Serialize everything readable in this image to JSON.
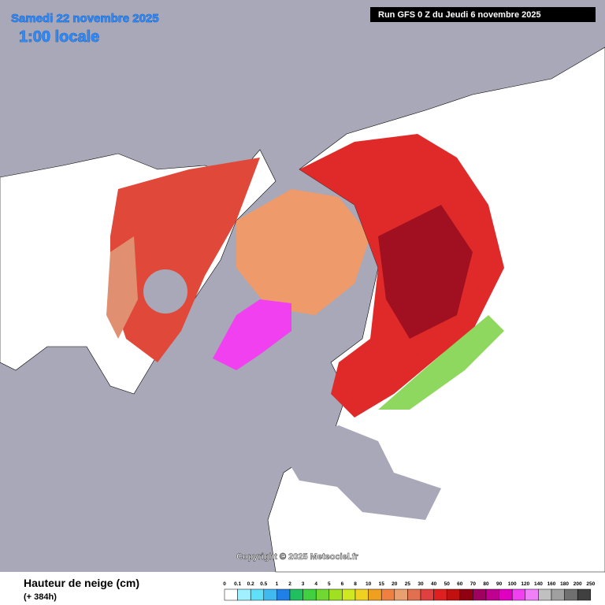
{
  "header": {
    "date": "Samedi 22 novembre 2025",
    "time": "1:00 locale",
    "run": "Run GFS 0 Z du Jeudi 6 novembre 2025"
  },
  "copyright": "Copyright © 2025 Meteociel.fr",
  "legend": {
    "title": "Hauteur de neige (cm)",
    "lead": "(+ 384h)",
    "labels": [
      "0",
      "0.1",
      "0.2",
      "0.5",
      "1",
      "2",
      "3",
      "4",
      "5",
      "6",
      "8",
      "10",
      "15",
      "20",
      "25",
      "30",
      "40",
      "50",
      "60",
      "70",
      "80",
      "90",
      "100",
      "120",
      "140",
      "160",
      "180",
      "200",
      "250"
    ],
    "colors": [
      "#ffffff",
      "#a0f0ff",
      "#60e0f8",
      "#40b8f0",
      "#2080e8",
      "#20c060",
      "#40d040",
      "#70d830",
      "#a0e020",
      "#d0e820",
      "#f0d020",
      "#f0a020",
      "#f08040",
      "#e8a070",
      "#e07050",
      "#e04040",
      "#e02020",
      "#c01010",
      "#900010",
      "#a00060",
      "#c00090",
      "#e000c0",
      "#f040f0",
      "#f080f8",
      "#c0c0c0",
      "#a0a0a0",
      "#707070",
      "#404040"
    ]
  }
}
